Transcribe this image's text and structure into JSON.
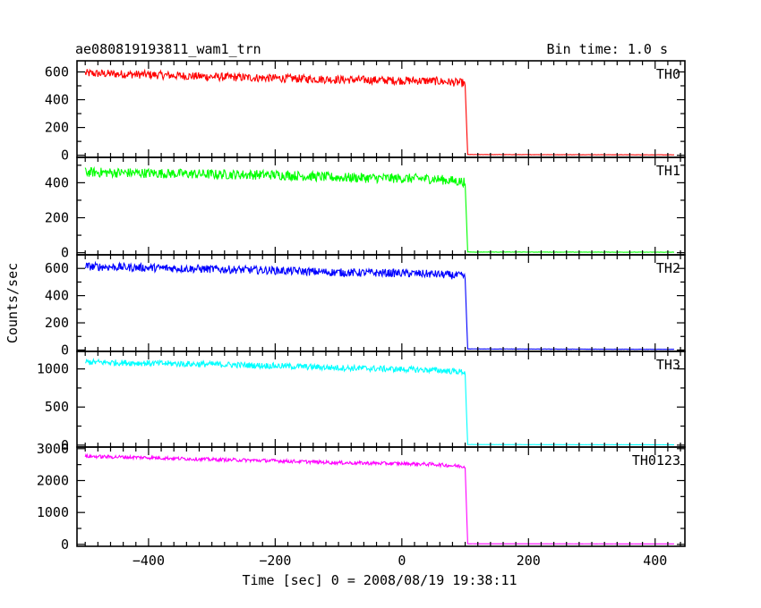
{
  "chart_data": {
    "type": "line",
    "title": "ae080819193811_wam1_trn",
    "bin_time_label": "Bin time: 1.0 s",
    "xlabel": "Time [sec] 0 = 2008/08/19 19:38:11",
    "ylabel": "Counts/sec",
    "xlim": [
      -513,
      447
    ],
    "x_ticks": [
      -400,
      -200,
      0,
      200,
      400
    ],
    "grid": false,
    "panels": [
      {
        "name": "TH0",
        "color": "#ff0000",
        "ylim": [
          -15,
          680
        ],
        "y_ticks": [
          0,
          200,
          400,
          600
        ],
        "y_tick_labels": [
          "0",
          "200",
          "400",
          "600"
        ],
        "points": [
          [
            -500,
            590
          ],
          [
            -400,
            580
          ],
          [
            -300,
            565
          ],
          [
            -200,
            555
          ],
          [
            -100,
            545
          ],
          [
            0,
            538
          ],
          [
            50,
            535
          ],
          [
            98,
            520
          ],
          [
            100,
            500
          ],
          [
            102,
            250
          ],
          [
            104,
            5
          ],
          [
            430,
            3
          ]
        ],
        "noise": 30
      },
      {
        "name": "TH1",
        "color": "#00ff00",
        "ylim": [
          -12,
          545
        ],
        "y_ticks": [
          0,
          200,
          400
        ],
        "y_tick_labels": [
          "0",
          "200",
          "400"
        ],
        "points": [
          [
            -500,
            460
          ],
          [
            -400,
            455
          ],
          [
            -300,
            448
          ],
          [
            -200,
            445
          ],
          [
            -100,
            430
          ],
          [
            0,
            425
          ],
          [
            50,
            422
          ],
          [
            98,
            405
          ],
          [
            100,
            390
          ],
          [
            102,
            200
          ],
          [
            104,
            4
          ],
          [
            430,
            3
          ]
        ],
        "noise": 28
      },
      {
        "name": "TH2",
        "color": "#0000ff",
        "ylim": [
          -10,
          700
        ],
        "y_ticks": [
          0,
          200,
          400,
          600
        ],
        "y_tick_labels": [
          "0",
          "200",
          "400",
          "600"
        ],
        "points": [
          [
            -500,
            615
          ],
          [
            -400,
            605
          ],
          [
            -300,
            595
          ],
          [
            -200,
            585
          ],
          [
            -100,
            570
          ],
          [
            0,
            565
          ],
          [
            50,
            558
          ],
          [
            98,
            545
          ],
          [
            100,
            520
          ],
          [
            102,
            260
          ],
          [
            104,
            8
          ],
          [
            430,
            5
          ]
        ],
        "noise": 30
      },
      {
        "name": "TH3",
        "color": "#00ffff",
        "ylim": [
          -25,
          1230
        ],
        "y_ticks": [
          0,
          500,
          1000
        ],
        "y_tick_labels": [
          "0",
          "500",
          "1000"
        ],
        "points": [
          [
            -500,
            1090
          ],
          [
            -400,
            1075
          ],
          [
            -300,
            1060
          ],
          [
            -200,
            1040
          ],
          [
            -100,
            1015
          ],
          [
            0,
            995
          ],
          [
            50,
            985
          ],
          [
            98,
            960
          ],
          [
            100,
            930
          ],
          [
            102,
            450
          ],
          [
            104,
            8
          ],
          [
            430,
            5
          ]
        ],
        "noise": 40
      },
      {
        "name": "TH0123",
        "color": "#ff00ff",
        "ylim": [
          -60,
          3050
        ],
        "y_ticks": [
          0,
          1000,
          2000,
          3000
        ],
        "y_tick_labels": [
          "0",
          "1000",
          "2000",
          "3000"
        ],
        "points": [
          [
            -500,
            2760
          ],
          [
            -400,
            2720
          ],
          [
            -300,
            2660
          ],
          [
            -200,
            2620
          ],
          [
            -100,
            2560
          ],
          [
            0,
            2530
          ],
          [
            50,
            2510
          ],
          [
            98,
            2440
          ],
          [
            100,
            2400
          ],
          [
            102,
            1200
          ],
          [
            104,
            20
          ],
          [
            430,
            15
          ]
        ],
        "noise": 55
      }
    ]
  }
}
